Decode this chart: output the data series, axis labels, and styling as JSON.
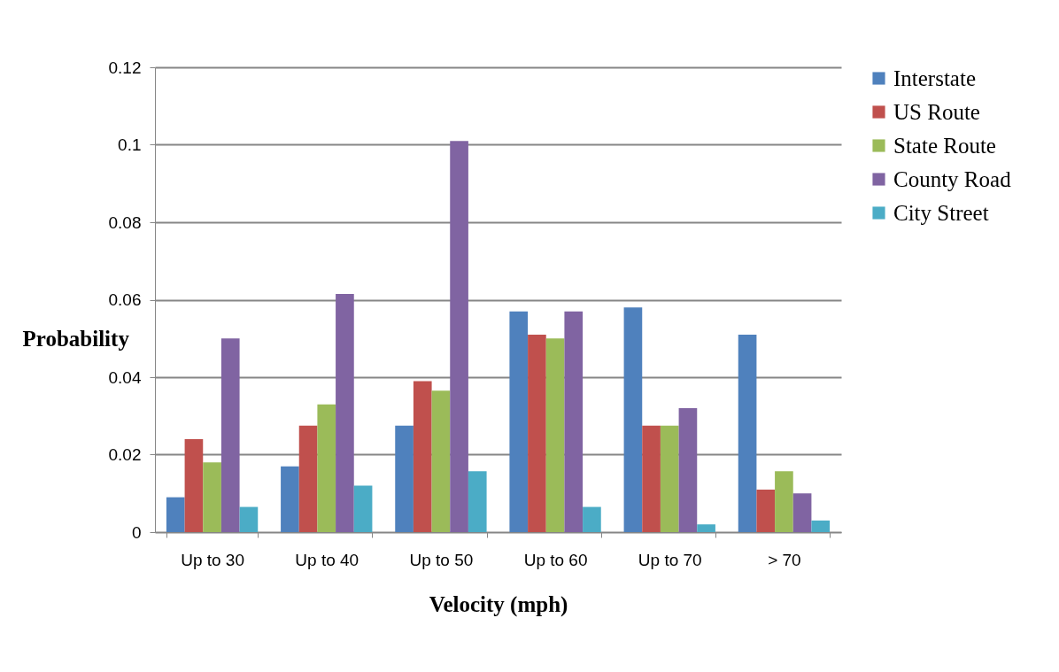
{
  "chart_data": {
    "type": "bar",
    "xlabel": "Velocity (mph)",
    "ylabel": "Probability",
    "categories": [
      "Up to 30",
      "Up to 40",
      "Up to 50",
      "Up to 60",
      "Up to 70",
      "> 70"
    ],
    "series": [
      {
        "name": "Interstate",
        "color": "#4f81bd",
        "values": [
          0.009,
          0.017,
          0.0275,
          0.057,
          0.058,
          0.051
        ]
      },
      {
        "name": "US Route",
        "color": "#c0504d",
        "values": [
          0.024,
          0.0275,
          0.039,
          0.051,
          0.0275,
          0.011
        ]
      },
      {
        "name": "State Route",
        "color": "#9bbb59",
        "values": [
          0.018,
          0.033,
          0.0365,
          0.05,
          0.0275,
          0.0157
        ]
      },
      {
        "name": "County Road",
        "color": "#8064a2",
        "values": [
          0.05,
          0.0615,
          0.101,
          0.057,
          0.032,
          0.01
        ]
      },
      {
        "name": "City Street",
        "color": "#4bacc6",
        "values": [
          0.0065,
          0.012,
          0.0157,
          0.0065,
          0.002,
          0.003
        ]
      }
    ],
    "ylim": [
      0,
      0.12
    ],
    "yticks": [
      0,
      0.02,
      0.04,
      0.06,
      0.08,
      0.1,
      0.12
    ],
    "grid": "y",
    "legend": "right"
  }
}
